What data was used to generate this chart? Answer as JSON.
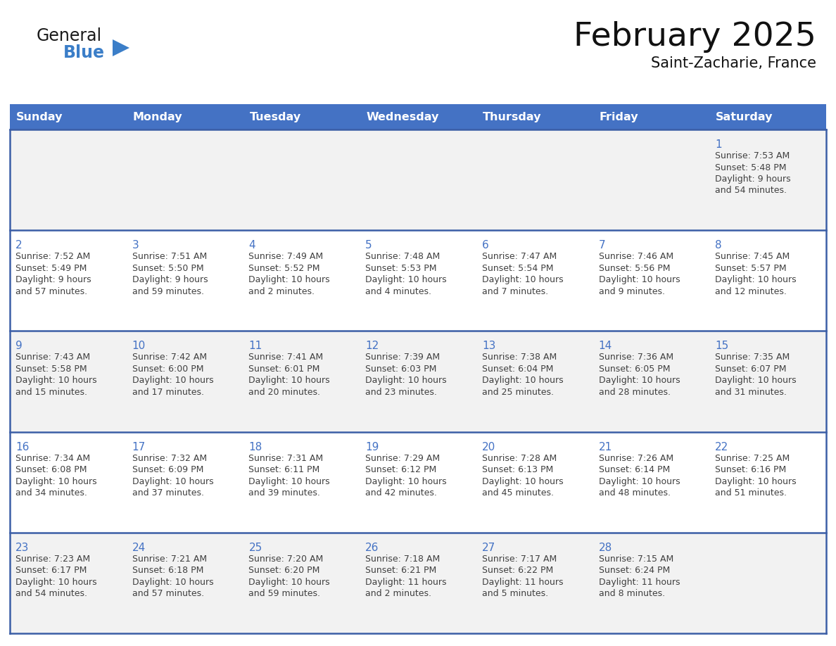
{
  "title": "February 2025",
  "subtitle": "Saint-Zacharie, France",
  "days_of_week": [
    "Sunday",
    "Monday",
    "Tuesday",
    "Wednesday",
    "Thursday",
    "Friday",
    "Saturday"
  ],
  "header_bg": "#4472C4",
  "header_text_color": "#FFFFFF",
  "cell_bg_even": "#F2F2F2",
  "cell_bg_odd": "#FFFFFF",
  "cell_border_color": "#3B5EA6",
  "day_number_color": "#4472C4",
  "text_color": "#404040",
  "logo_general_color": "#1a1a1a",
  "logo_blue_color": "#3B7EC8",
  "weeks": [
    {
      "days": [
        {
          "day": null,
          "info": null
        },
        {
          "day": null,
          "info": null
        },
        {
          "day": null,
          "info": null
        },
        {
          "day": null,
          "info": null
        },
        {
          "day": null,
          "info": null
        },
        {
          "day": null,
          "info": null
        },
        {
          "day": 1,
          "info": "Sunrise: 7:53 AM\nSunset: 5:48 PM\nDaylight: 9 hours\nand 54 minutes."
        }
      ]
    },
    {
      "days": [
        {
          "day": 2,
          "info": "Sunrise: 7:52 AM\nSunset: 5:49 PM\nDaylight: 9 hours\nand 57 minutes."
        },
        {
          "day": 3,
          "info": "Sunrise: 7:51 AM\nSunset: 5:50 PM\nDaylight: 9 hours\nand 59 minutes."
        },
        {
          "day": 4,
          "info": "Sunrise: 7:49 AM\nSunset: 5:52 PM\nDaylight: 10 hours\nand 2 minutes."
        },
        {
          "day": 5,
          "info": "Sunrise: 7:48 AM\nSunset: 5:53 PM\nDaylight: 10 hours\nand 4 minutes."
        },
        {
          "day": 6,
          "info": "Sunrise: 7:47 AM\nSunset: 5:54 PM\nDaylight: 10 hours\nand 7 minutes."
        },
        {
          "day": 7,
          "info": "Sunrise: 7:46 AM\nSunset: 5:56 PM\nDaylight: 10 hours\nand 9 minutes."
        },
        {
          "day": 8,
          "info": "Sunrise: 7:45 AM\nSunset: 5:57 PM\nDaylight: 10 hours\nand 12 minutes."
        }
      ]
    },
    {
      "days": [
        {
          "day": 9,
          "info": "Sunrise: 7:43 AM\nSunset: 5:58 PM\nDaylight: 10 hours\nand 15 minutes."
        },
        {
          "day": 10,
          "info": "Sunrise: 7:42 AM\nSunset: 6:00 PM\nDaylight: 10 hours\nand 17 minutes."
        },
        {
          "day": 11,
          "info": "Sunrise: 7:41 AM\nSunset: 6:01 PM\nDaylight: 10 hours\nand 20 minutes."
        },
        {
          "day": 12,
          "info": "Sunrise: 7:39 AM\nSunset: 6:03 PM\nDaylight: 10 hours\nand 23 minutes."
        },
        {
          "day": 13,
          "info": "Sunrise: 7:38 AM\nSunset: 6:04 PM\nDaylight: 10 hours\nand 25 minutes."
        },
        {
          "day": 14,
          "info": "Sunrise: 7:36 AM\nSunset: 6:05 PM\nDaylight: 10 hours\nand 28 minutes."
        },
        {
          "day": 15,
          "info": "Sunrise: 7:35 AM\nSunset: 6:07 PM\nDaylight: 10 hours\nand 31 minutes."
        }
      ]
    },
    {
      "days": [
        {
          "day": 16,
          "info": "Sunrise: 7:34 AM\nSunset: 6:08 PM\nDaylight: 10 hours\nand 34 minutes."
        },
        {
          "day": 17,
          "info": "Sunrise: 7:32 AM\nSunset: 6:09 PM\nDaylight: 10 hours\nand 37 minutes."
        },
        {
          "day": 18,
          "info": "Sunrise: 7:31 AM\nSunset: 6:11 PM\nDaylight: 10 hours\nand 39 minutes."
        },
        {
          "day": 19,
          "info": "Sunrise: 7:29 AM\nSunset: 6:12 PM\nDaylight: 10 hours\nand 42 minutes."
        },
        {
          "day": 20,
          "info": "Sunrise: 7:28 AM\nSunset: 6:13 PM\nDaylight: 10 hours\nand 45 minutes."
        },
        {
          "day": 21,
          "info": "Sunrise: 7:26 AM\nSunset: 6:14 PM\nDaylight: 10 hours\nand 48 minutes."
        },
        {
          "day": 22,
          "info": "Sunrise: 7:25 AM\nSunset: 6:16 PM\nDaylight: 10 hours\nand 51 minutes."
        }
      ]
    },
    {
      "days": [
        {
          "day": 23,
          "info": "Sunrise: 7:23 AM\nSunset: 6:17 PM\nDaylight: 10 hours\nand 54 minutes."
        },
        {
          "day": 24,
          "info": "Sunrise: 7:21 AM\nSunset: 6:18 PM\nDaylight: 10 hours\nand 57 minutes."
        },
        {
          "day": 25,
          "info": "Sunrise: 7:20 AM\nSunset: 6:20 PM\nDaylight: 10 hours\nand 59 minutes."
        },
        {
          "day": 26,
          "info": "Sunrise: 7:18 AM\nSunset: 6:21 PM\nDaylight: 11 hours\nand 2 minutes."
        },
        {
          "day": 27,
          "info": "Sunrise: 7:17 AM\nSunset: 6:22 PM\nDaylight: 11 hours\nand 5 minutes."
        },
        {
          "day": 28,
          "info": "Sunrise: 7:15 AM\nSunset: 6:24 PM\nDaylight: 11 hours\nand 8 minutes."
        },
        {
          "day": null,
          "info": null
        }
      ]
    }
  ],
  "fig_width": 11.88,
  "fig_height": 9.18,
  "dpi": 100
}
